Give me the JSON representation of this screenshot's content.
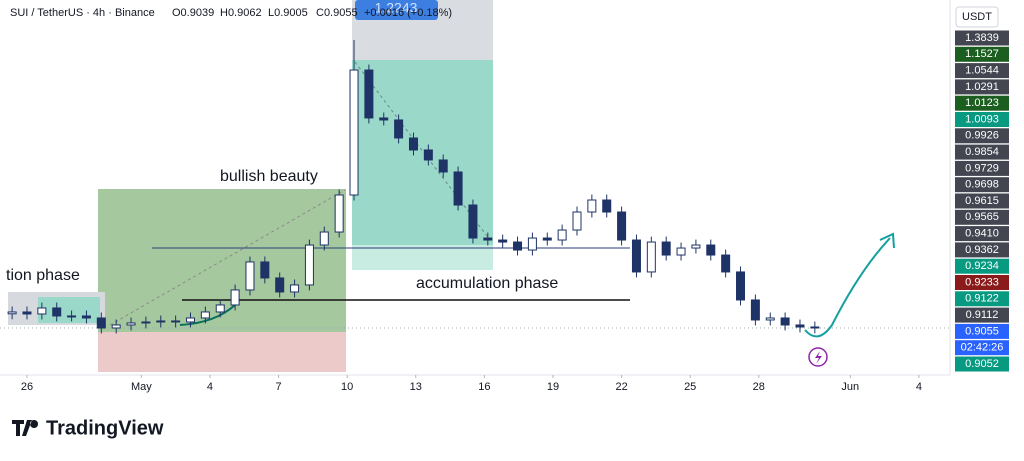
{
  "header": {
    "symbol": "SUI / TetherUS · 4h · Binance",
    "ohlc": [
      "O0.9039",
      "H0.9062",
      "L0.9005",
      "C0.9055"
    ],
    "change": "+0.0016 (+0.18%)"
  },
  "annotations": {
    "left_phase": "tion phase",
    "bullish": "bullish beauty",
    "accumulation": "accumulation phase",
    "peak_label": "1.2243"
  },
  "price_scale": {
    "currency": "USDT",
    "labels": [
      {
        "text": "1.3839",
        "color": "#434651"
      },
      {
        "text": "1.1527",
        "color": "#1b5e20"
      },
      {
        "text": "1.0544",
        "color": "#434651"
      },
      {
        "text": "1.0291",
        "color": "#434651"
      },
      {
        "text": "1.0123",
        "color": "#1b5e20"
      },
      {
        "text": "1.0093",
        "color": "#089981"
      },
      {
        "text": "0.9926",
        "color": "#434651"
      },
      {
        "text": "0.9854",
        "color": "#434651"
      },
      {
        "text": "0.9729",
        "color": "#434651"
      },
      {
        "text": "0.9698",
        "color": "#434651"
      },
      {
        "text": "0.9615",
        "color": "#434651"
      },
      {
        "text": "0.9565",
        "color": "#434651"
      },
      {
        "text": "0.9410",
        "color": "#434651"
      },
      {
        "text": "0.9362",
        "color": "#434651"
      },
      {
        "text": "0.9234",
        "color": "#089981"
      },
      {
        "text": "0.9233",
        "color": "#8b1a1a"
      },
      {
        "text": "0.9122",
        "color": "#089981"
      },
      {
        "text": "0.9112",
        "color": "#434651"
      },
      {
        "text": "0.9055",
        "color": "#2962ff"
      },
      {
        "text": "02:42:26",
        "color": "#2962ff"
      },
      {
        "text": "0.9052",
        "color": "#089981"
      }
    ]
  },
  "brand": "TradingView",
  "chart_data": {
    "type": "candlestick",
    "up_color": "#ffffff",
    "down_color": "#1e3366",
    "line_color": "#1e3366",
    "grid": false,
    "xlim": [
      -1.18,
      40.36
    ],
    "ylim": [
      0.857,
      1.266
    ],
    "xticks": [
      {
        "value": 0,
        "label": "26"
      },
      {
        "value": 5,
        "label": "May"
      },
      {
        "value": 8,
        "label": "4"
      },
      {
        "value": 11,
        "label": "7"
      },
      {
        "value": 14,
        "label": "10"
      },
      {
        "value": 17,
        "label": "13"
      },
      {
        "value": 20,
        "label": "16"
      },
      {
        "value": 23,
        "label": "19"
      },
      {
        "value": 26,
        "label": "22"
      },
      {
        "value": 29,
        "label": "25"
      },
      {
        "value": 32,
        "label": "28"
      },
      {
        "value": 36,
        "label": "Jun"
      },
      {
        "value": 39,
        "label": "4"
      }
    ],
    "x": [
      -0.65,
      0,
      0.65,
      1.3,
      1.95,
      2.6,
      3.25,
      3.9,
      4.55,
      5.2,
      5.85,
      6.5,
      7.15,
      7.8,
      8.45,
      9.1,
      9.75,
      10.4,
      11.05,
      11.7,
      12.35,
      13,
      13.65,
      14.3,
      14.95,
      15.6,
      16.25,
      16.9,
      17.55,
      18.2,
      18.85,
      19.5,
      20.15,
      20.8,
      21.45,
      22.1,
      22.75,
      23.4,
      24.05,
      24.7,
      25.35,
      26,
      26.65,
      27.3,
      27.95,
      28.6,
      29.25,
      29.9,
      30.55,
      31.2,
      31.85,
      32.5,
      33.15,
      33.8,
      34.45
    ],
    "open": [
      0.921,
      0.923,
      0.9208,
      0.9274,
      0.9186,
      0.9186,
      0.9164,
      0.9054,
      0.9087,
      0.9109,
      0.912,
      0.9131,
      0.912,
      0.9164,
      0.923,
      0.9307,
      0.9472,
      0.978,
      0.9604,
      0.945,
      0.9527,
      0.9966,
      1.0109,
      1.0516,
      1.189,
      1.1363,
      1.1341,
      1.1143,
      1.1011,
      1.0901,
      1.0769,
      1.0406,
      1.0043,
      1.0021,
      0.9999,
      0.9911,
      1.0043,
      1.0021,
      1.0131,
      1.0329,
      1.0461,
      1.0329,
      1.0021,
      0.967,
      0.9999,
      0.9856,
      0.9933,
      0.9966,
      0.9856,
      0.967,
      0.9362,
      0.9142,
      0.9164,
      0.9087,
      0.9065
    ],
    "high": [
      0.929,
      0.929,
      0.9334,
      0.9334,
      0.9246,
      0.9246,
      0.9224,
      0.9147,
      0.9169,
      0.918,
      0.9191,
      0.9191,
      0.9224,
      0.929,
      0.9367,
      0.9532,
      0.984,
      0.984,
      0.9664,
      0.9587,
      1.0026,
      1.0169,
      1.0576,
      1.222,
      1.195,
      1.1423,
      1.1401,
      1.1203,
      1.1071,
      1.0961,
      1.0829,
      1.0466,
      1.0103,
      1.0081,
      1.0059,
      1.0103,
      1.0103,
      1.0191,
      1.0389,
      1.0521,
      1.0521,
      1.0389,
      1.0081,
      1.0059,
      1.0059,
      0.9993,
      1.0026,
      1.0026,
      0.9916,
      0.973,
      0.9422,
      0.9224,
      0.9224,
      0.9147,
      0.9125
    ],
    "low": [
      0.915,
      0.9148,
      0.9148,
      0.9126,
      0.9126,
      0.9104,
      0.8994,
      0.8994,
      0.9027,
      0.9049,
      0.906,
      0.906,
      0.906,
      0.9104,
      0.917,
      0.9247,
      0.9412,
      0.9544,
      0.939,
      0.939,
      0.9467,
      0.9906,
      1.0049,
      1.0456,
      1.1303,
      1.1281,
      1.1083,
      1.0951,
      1.0841,
      1.0709,
      1.0346,
      0.9983,
      0.9961,
      0.9939,
      0.9851,
      0.9851,
      0.9961,
      0.9961,
      1.0071,
      1.0269,
      1.0269,
      0.9961,
      0.961,
      0.961,
      0.9796,
      0.9796,
      0.9873,
      0.9796,
      0.961,
      0.9302,
      0.9082,
      0.9082,
      0.9027,
      0.9005,
      0.8994
    ],
    "close": [
      0.923,
      0.9208,
      0.9274,
      0.9186,
      0.9186,
      0.9164,
      0.9054,
      0.9087,
      0.9109,
      0.912,
      0.9131,
      0.912,
      0.9164,
      0.923,
      0.9307,
      0.9472,
      0.978,
      0.9604,
      0.945,
      0.9527,
      0.9966,
      1.0109,
      1.0516,
      1.189,
      1.1363,
      1.1341,
      1.1143,
      1.1011,
      1.0901,
      1.0769,
      1.0406,
      1.0043,
      1.0021,
      0.9999,
      0.9911,
      1.0043,
      1.0021,
      1.0131,
      1.0329,
      1.0461,
      1.0329,
      1.0021,
      0.967,
      0.9999,
      0.9856,
      0.9933,
      0.9966,
      0.9856,
      0.967,
      0.9362,
      0.9142,
      0.9164,
      0.9087,
      0.9065,
      0.9054
    ]
  }
}
